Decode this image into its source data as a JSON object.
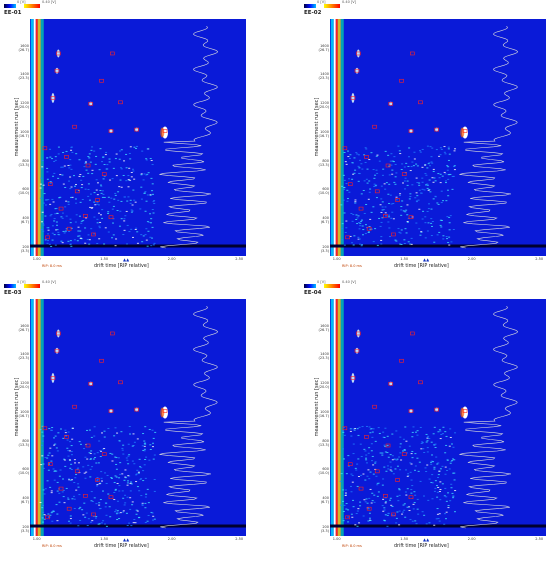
{
  "colorbar": {
    "low": "0 [V]",
    "high": "0.40 [V]"
  },
  "axes": {
    "ylabel": "measurement run [sec]",
    "xlabel": "drift time [RIP relative]",
    "rip_note": "RIP: 8.0 ms",
    "y_ticks": [
      {
        "v": 1600,
        "l": "1600\n(26.7)"
      },
      {
        "v": 1400,
        "l": "1400\n(23.3)"
      },
      {
        "v": 1200,
        "l": "1200\n(20.0)"
      },
      {
        "v": 1000,
        "l": "1000\n(16.7)"
      },
      {
        "v": 800,
        "l": "800\n(13.3)"
      },
      {
        "v": 600,
        "l": "600\n(10.0)"
      },
      {
        "v": 400,
        "l": "400\n(6.7)"
      },
      {
        "v": 200,
        "l": "200\n(3.3)"
      }
    ],
    "x_ticks": [
      "1.00",
      "1.50",
      "2.00",
      "2.50"
    ]
  },
  "chart_data": [
    {
      "type": "heatmap",
      "title": "EE-01",
      "xlabel": "drift time [RIP relative]",
      "ylabel": "measurement run [sec]",
      "xlim": [
        1.0,
        2.5
      ],
      "ylim": [
        200,
        1750
      ]
    },
    {
      "type": "heatmap",
      "title": "EE-02",
      "xlabel": "drift time [RIP relative]",
      "ylabel": "measurement run [sec]",
      "xlim": [
        1.0,
        2.5
      ],
      "ylim": [
        200,
        1750
      ]
    },
    {
      "type": "heatmap",
      "title": "EE-03",
      "xlabel": "drift time [RIP relative]",
      "ylabel": "measurement run [sec]",
      "xlim": [
        1.0,
        2.5
      ],
      "ylim": [
        200,
        1750
      ]
    },
    {
      "type": "heatmap",
      "title": "EE-04",
      "xlabel": "drift time [RIP relative]",
      "ylabel": "measurement run [sec]",
      "xlim": [
        1.0,
        2.5
      ],
      "ylim": [
        200,
        1750
      ]
    }
  ],
  "peaks": [
    {
      "x": 1.16,
      "y": 1560
    },
    {
      "x": 1.56,
      "y": 1560
    },
    {
      "x": 1.15,
      "y": 1440
    },
    {
      "x": 1.48,
      "y": 1370
    },
    {
      "x": 1.12,
      "y": 1250
    },
    {
      "x": 1.4,
      "y": 1210
    },
    {
      "x": 1.62,
      "y": 1220
    },
    {
      "x": 1.28,
      "y": 1050
    },
    {
      "x": 1.55,
      "y": 1020
    },
    {
      "x": 1.74,
      "y": 1030
    },
    {
      "x": 1.95,
      "y": 1020
    },
    {
      "x": 1.06,
      "y": 900
    },
    {
      "x": 1.22,
      "y": 840
    },
    {
      "x": 1.38,
      "y": 780
    },
    {
      "x": 1.5,
      "y": 720
    },
    {
      "x": 1.1,
      "y": 650
    },
    {
      "x": 1.3,
      "y": 600
    },
    {
      "x": 1.45,
      "y": 540
    },
    {
      "x": 1.18,
      "y": 480
    },
    {
      "x": 1.36,
      "y": 430
    },
    {
      "x": 1.55,
      "y": 420
    },
    {
      "x": 1.24,
      "y": 340
    },
    {
      "x": 1.42,
      "y": 300
    },
    {
      "x": 1.08,
      "y": 280
    }
  ]
}
